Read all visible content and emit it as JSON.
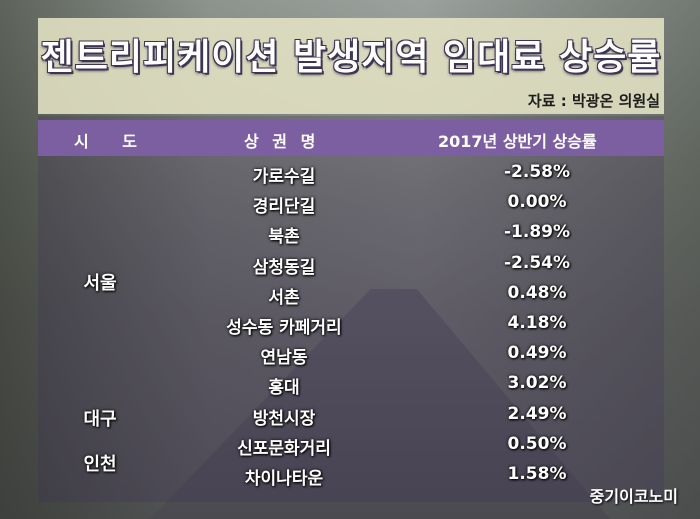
{
  "title": "젠트리피케이션 발생지역 임대료 상승률",
  "source": "자료 : 박광온 의원실",
  "watermark": "중기이코노미",
  "colors": {
    "header_bg": "#7c5fa0",
    "title_box": "#e4e2c4"
  },
  "chart_data": {
    "type": "table",
    "columns": [
      "시 도",
      "상 권 명",
      "2017년 상반기 상승률"
    ],
    "groups": [
      {
        "region": "서울",
        "start": 0,
        "count": 8
      },
      {
        "region": "대구",
        "start": 8,
        "count": 1
      },
      {
        "region": "인천",
        "start": 9,
        "count": 2
      }
    ],
    "rows": [
      {
        "area": "가로수길",
        "rate": "-2.58%"
      },
      {
        "area": "경리단길",
        "rate": "0.00%"
      },
      {
        "area": "북촌",
        "rate": "-1.89%"
      },
      {
        "area": "삼청동길",
        "rate": "-2.54%"
      },
      {
        "area": "서촌",
        "rate": "0.48%"
      },
      {
        "area": "성수동 카페거리",
        "rate": "4.18%"
      },
      {
        "area": "연남동",
        "rate": "0.49%"
      },
      {
        "area": "홍대",
        "rate": "3.02%"
      },
      {
        "area": "방천시장",
        "rate": "2.49%"
      },
      {
        "area": "신포문화거리",
        "rate": "0.50%"
      },
      {
        "area": "차이나타운",
        "rate": "1.58%"
      }
    ]
  }
}
